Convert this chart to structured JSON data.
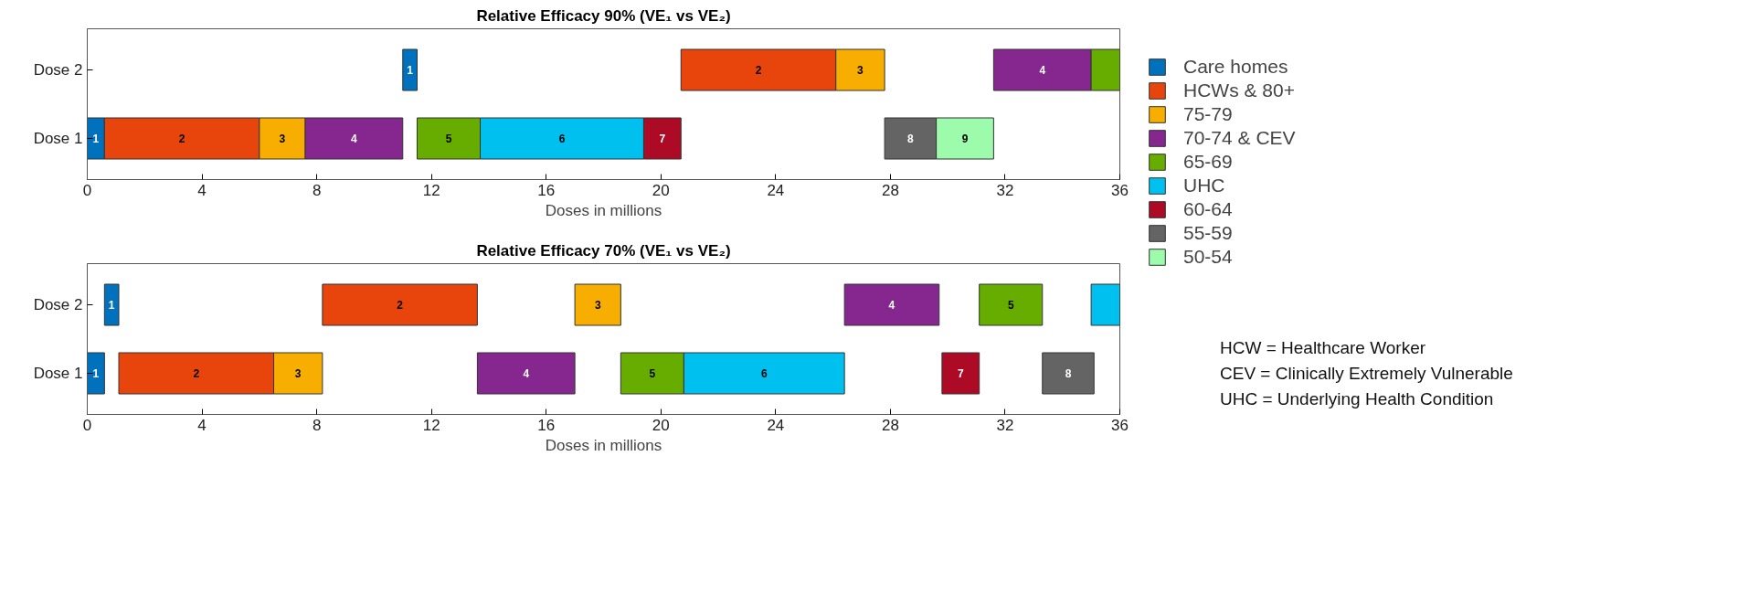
{
  "chart_data": [
    {
      "type": "bar",
      "orientation": "horizontal",
      "title": "Relative Efficacy 90% (VE₁ vs VE₂)",
      "xlabel": "Doses in millions",
      "categories": [
        "Dose 2",
        "Dose 1"
      ],
      "xlim": [
        0,
        36
      ],
      "xticks": [
        0,
        4,
        8,
        12,
        16,
        20,
        24,
        28,
        32,
        36
      ],
      "legend": "right",
      "series": [
        {
          "name": "Care homes",
          "color": "#0072bd",
          "base": [
            11.0,
            0
          ],
          "values": [
            0.5,
            0.6
          ]
        },
        {
          "name": "HCWs & 80+",
          "color": "#e8450c",
          "base": [
            20.7,
            0.6
          ],
          "values": [
            5.4,
            5.4
          ]
        },
        {
          "name": "75-79",
          "color": "#f7ae00",
          "base": [
            26.1,
            6.0
          ],
          "values": [
            1.7,
            1.6
          ]
        },
        {
          "name": "70-74 & CEV",
          "color": "#86278f",
          "base": [
            31.6,
            7.6
          ],
          "values": [
            3.4,
            3.4
          ]
        },
        {
          "name": "65-69",
          "color": "#66ad00",
          "base": [
            35.0,
            11.5
          ],
          "values": [
            1.0,
            2.2
          ]
        },
        {
          "name": "UHC",
          "color": "#00c0f0",
          "base": [
            null,
            13.7
          ],
          "values": [
            null,
            5.7
          ]
        },
        {
          "name": "60-64",
          "color": "#ad0a26",
          "base": [
            null,
            19.4
          ],
          "values": [
            null,
            1.3
          ]
        },
        {
          "name": "55-59",
          "color": "#646464",
          "base": [
            null,
            27.8
          ],
          "values": [
            null,
            1.8
          ]
        },
        {
          "name": "50-54",
          "color": "#9cfcac",
          "base": [
            null,
            29.6
          ],
          "values": [
            null,
            2.0
          ]
        }
      ],
      "annotations": [
        "1",
        "2",
        "3",
        "4",
        "1",
        "2",
        "3",
        "4",
        "5",
        "6",
        "7",
        "8",
        "9"
      ]
    },
    {
      "type": "bar",
      "orientation": "horizontal",
      "title": "Relative Efficacy 70% (VE₁ vs VE₂)",
      "xlabel": "Doses in millions",
      "categories": [
        "Dose 2",
        "Dose 1"
      ],
      "xlim": [
        0,
        36
      ],
      "xticks": [
        0,
        4,
        8,
        12,
        16,
        20,
        24,
        28,
        32,
        36
      ],
      "series": [
        {
          "color": "#0072bd",
          "base": [
            0.6,
            0
          ],
          "values": [
            0.5,
            0.6
          ]
        },
        {
          "color": "#e8450c",
          "base": [
            8.2,
            1.1
          ],
          "values": [
            5.4,
            5.4
          ]
        },
        {
          "color": "#f7ae00",
          "base": [
            17.0,
            6.5
          ],
          "values": [
            1.6,
            1.7
          ]
        },
        {
          "color": "#86278f",
          "base": [
            26.4,
            13.6
          ],
          "values": [
            3.3,
            3.4
          ]
        },
        {
          "color": "#66ad00",
          "base": [
            31.1,
            18.6
          ],
          "values": [
            2.2,
            2.2
          ]
        },
        {
          "color": "#00c0f0",
          "base": [
            35.0,
            20.8
          ],
          "values": [
            1.0,
            5.6
          ]
        },
        {
          "color": "#ad0a26",
          "base": [
            null,
            29.8
          ],
          "values": [
            null,
            1.3
          ]
        },
        {
          "color": "#646464",
          "base": [
            null,
            33.3
          ],
          "values": [
            null,
            1.8
          ]
        }
      ],
      "annotations": [
        "1",
        "2",
        "3",
        "4",
        "5",
        "1",
        "2",
        "3",
        "4",
        "5",
        "6",
        "7",
        "8",
        "HCW = Healthcare Worker",
        "CEV = Clinically Extremely Vulnerable",
        "UHC = Underlying Health Condition"
      ]
    }
  ]
}
